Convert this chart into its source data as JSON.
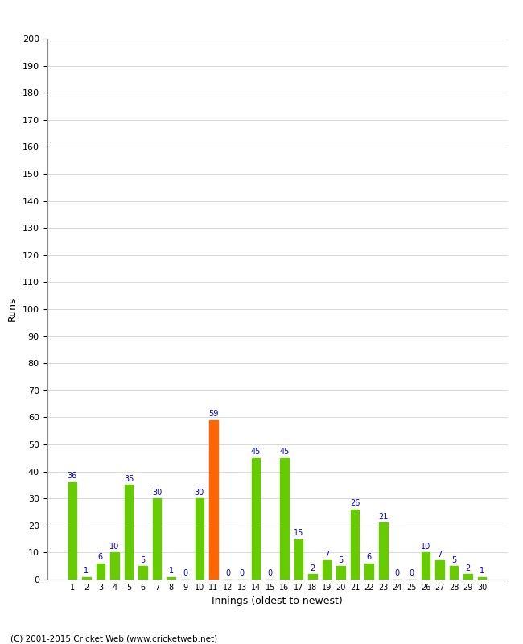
{
  "innings": [
    1,
    2,
    3,
    4,
    5,
    6,
    7,
    8,
    9,
    10,
    11,
    12,
    13,
    14,
    15,
    16,
    17,
    18,
    19,
    20,
    21,
    22,
    23,
    24,
    25,
    26,
    27,
    28,
    29,
    30
  ],
  "runs": [
    36,
    1,
    6,
    10,
    35,
    5,
    30,
    1,
    0,
    30,
    59,
    0,
    0,
    45,
    0,
    45,
    15,
    2,
    7,
    5,
    26,
    6,
    21,
    0,
    0,
    10,
    7,
    5,
    2,
    1
  ],
  "colors": [
    "#66cc00",
    "#66cc00",
    "#66cc00",
    "#66cc00",
    "#66cc00",
    "#66cc00",
    "#66cc00",
    "#66cc00",
    "#66cc00",
    "#66cc00",
    "#ff6600",
    "#66cc00",
    "#66cc00",
    "#66cc00",
    "#66cc00",
    "#66cc00",
    "#66cc00",
    "#66cc00",
    "#66cc00",
    "#66cc00",
    "#66cc00",
    "#66cc00",
    "#66cc00",
    "#66cc00",
    "#66cc00",
    "#66cc00",
    "#66cc00",
    "#66cc00",
    "#66cc00",
    "#66cc00"
  ],
  "xlabel": "Innings (oldest to newest)",
  "ylabel": "Runs",
  "ylim": [
    0,
    200
  ],
  "yticks": [
    0,
    10,
    20,
    30,
    40,
    50,
    60,
    70,
    80,
    90,
    100,
    110,
    120,
    130,
    140,
    150,
    160,
    170,
    180,
    190,
    200
  ],
  "copyright": "(C) 2001-2015 Cricket Web (www.cricketweb.net)",
  "label_color": "#0000cc",
  "bg_color": "#ffffff",
  "grid_color": "#cccccc",
  "bar_width": 0.6
}
